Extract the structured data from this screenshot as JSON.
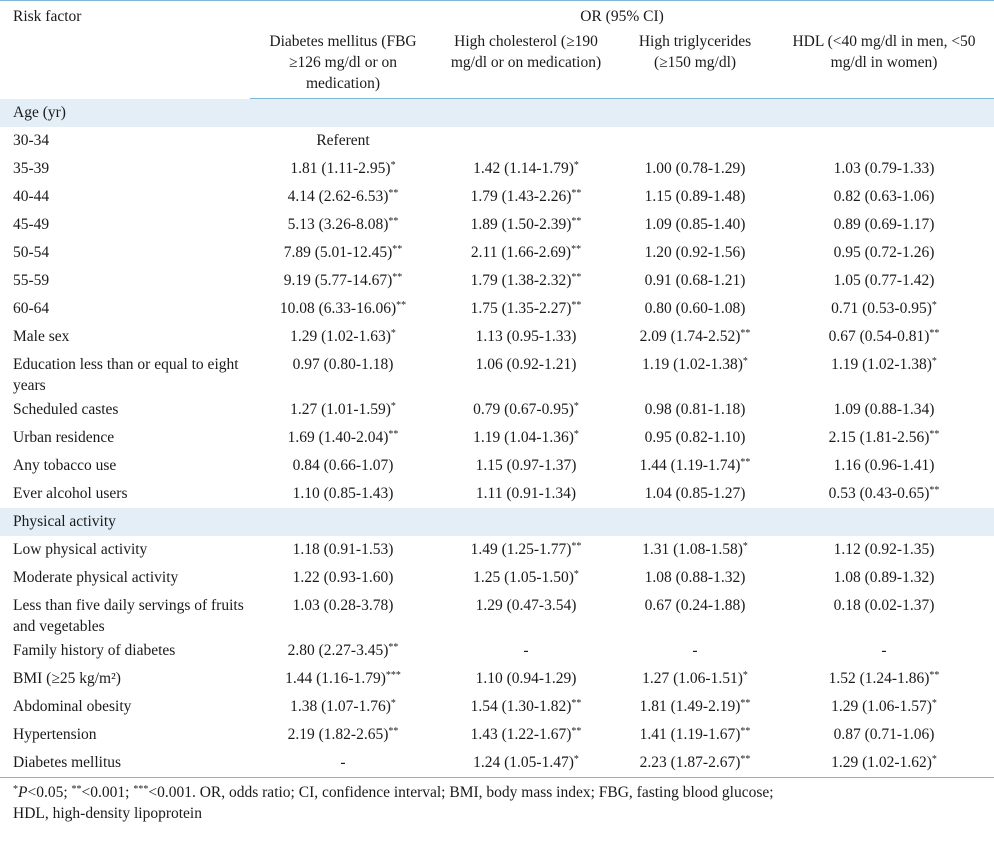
{
  "header": {
    "risk_factor": "Risk factor",
    "or_label": "OR (95% CI)",
    "columns": [
      "Diabetes mellitus (FBG ≥126 mg/dl or on medication)",
      "High cholesterol (≥190 mg/dl or on medication)",
      "High triglycerides (≥150 mg/dl)",
      "HDL (<40 mg/dl in men, <50 mg/dl in women)"
    ]
  },
  "sections": [
    {
      "title": "Age (yr)",
      "rows": [
        {
          "label": "30-34",
          "values": [
            "Referent",
            "",
            "",
            ""
          ],
          "sig": [
            "",
            "",
            "",
            ""
          ]
        },
        {
          "label": "35-39",
          "values": [
            "1.81 (1.11-2.95)",
            "1.42 (1.14-1.79)",
            "1.00 (0.78-1.29)",
            "1.03 (0.79-1.33)"
          ],
          "sig": [
            "*",
            "*",
            "",
            ""
          ]
        },
        {
          "label": "40-44",
          "values": [
            "4.14 (2.62-6.53)",
            "1.79 (1.43-2.26)",
            "1.15 (0.89-1.48)",
            "0.82 (0.63-1.06)"
          ],
          "sig": [
            "**",
            "**",
            "",
            ""
          ]
        },
        {
          "label": "45-49",
          "values": [
            "5.13 (3.26-8.08)",
            "1.89 (1.50-2.39)",
            "1.09 (0.85-1.40)",
            "0.89 (0.69-1.17)"
          ],
          "sig": [
            "**",
            "**",
            "",
            ""
          ]
        },
        {
          "label": "50-54",
          "values": [
            "7.89 (5.01-12.45)",
            "2.11 (1.66-2.69)",
            "1.20 (0.92-1.56)",
            "0.95 (0.72-1.26)"
          ],
          "sig": [
            "**",
            "**",
            "",
            ""
          ]
        },
        {
          "label": "55-59",
          "values": [
            "9.19 (5.77-14.67)",
            "1.79 (1.38-2.32)",
            "0.91 (0.68-1.21)",
            "1.05 (0.77-1.42)"
          ],
          "sig": [
            "**",
            "**",
            "",
            ""
          ]
        },
        {
          "label": "60-64",
          "values": [
            "10.08 (6.33-16.06)",
            "1.75 (1.35-2.27)",
            "0.80 (0.60-1.08)",
            "0.71 (0.53-0.95)"
          ],
          "sig": [
            "**",
            "**",
            "",
            "*"
          ]
        },
        {
          "label": "Male sex",
          "values": [
            "1.29 (1.02-1.63)",
            "1.13 (0.95-1.33)",
            "2.09 (1.74-2.52)",
            "0.67 (0.54-0.81)"
          ],
          "sig": [
            "*",
            "",
            "**",
            "**"
          ]
        },
        {
          "label": "Education less than or equal to eight years",
          "values": [
            "0.97 (0.80-1.18)",
            "1.06 (0.92-1.21)",
            "1.19 (1.02-1.38)",
            "1.19 (1.02-1.38)"
          ],
          "sig": [
            "",
            "",
            "*",
            "*"
          ],
          "tall": true
        },
        {
          "label": "Scheduled castes",
          "values": [
            "1.27 (1.01-1.59)",
            "0.79 (0.67-0.95)",
            "0.98 (0.81-1.18)",
            "1.09 (0.88-1.34)"
          ],
          "sig": [
            "*",
            "*",
            "",
            ""
          ]
        },
        {
          "label": "Urban residence",
          "values": [
            "1.69 (1.40-2.04)",
            "1.19 (1.04-1.36)",
            "0.95 (0.82-1.10)",
            "2.15 (1.81-2.56)"
          ],
          "sig": [
            "**",
            "*",
            "",
            "**"
          ]
        },
        {
          "label": "Any tobacco use",
          "values": [
            "0.84 (0.66-1.07)",
            "1.15 (0.97-1.37)",
            "1.44 (1.19-1.74)",
            "1.16 (0.96-1.41)"
          ],
          "sig": [
            "",
            "",
            "**",
            ""
          ]
        },
        {
          "label": "Ever alcohol users",
          "values": [
            "1.10 (0.85-1.43)",
            "1.11 (0.91-1.34)",
            "1.04 (0.85-1.27)",
            "0.53 (0.43-0.65)"
          ],
          "sig": [
            "",
            "",
            "",
            "**"
          ]
        }
      ]
    },
    {
      "title": "Physical activity",
      "rows": [
        {
          "label": "Low physical activity",
          "values": [
            "1.18 (0.91-1.53)",
            "1.49 (1.25-1.77)",
            "1.31 (1.08-1.58)",
            "1.12 (0.92-1.35)"
          ],
          "sig": [
            "",
            "**",
            "*",
            ""
          ]
        },
        {
          "label": "Moderate physical activity",
          "values": [
            "1.22 (0.93-1.60)",
            "1.25 (1.05-1.50)",
            "1.08 (0.88-1.32)",
            "1.08 (0.89-1.32)"
          ],
          "sig": [
            "",
            "*",
            "",
            ""
          ]
        },
        {
          "label": "Less than five daily servings of fruits and vegetables",
          "values": [
            "1.03 (0.28-3.78)",
            "1.29 (0.47-3.54)",
            "0.67 (0.24-1.88)",
            "0.18 (0.02-1.37)"
          ],
          "sig": [
            "",
            "",
            "",
            ""
          ],
          "tall": true
        },
        {
          "label": "Family history of diabetes",
          "values": [
            "2.80 (2.27-3.45)",
            "-",
            "-",
            "-"
          ],
          "sig": [
            "**",
            "",
            "",
            ""
          ]
        },
        {
          "label": "BMI (≥25 kg/m²)",
          "values": [
            "1.44 (1.16-1.79)",
            "1.10 (0.94-1.29)",
            "1.27 (1.06-1.51)",
            "1.52 (1.24-1.86)"
          ],
          "sig": [
            "***",
            "",
            "*",
            "**"
          ]
        },
        {
          "label": "Abdominal obesity",
          "values": [
            "1.38 (1.07-1.76)",
            "1.54 (1.30-1.82)",
            "1.81 (1.49-2.19)",
            "1.29 (1.06-1.57)"
          ],
          "sig": [
            "*",
            "**",
            "**",
            "*"
          ]
        },
        {
          "label": "Hypertension",
          "values": [
            "2.19 (1.82-2.65)",
            "1.43 (1.22-1.67)",
            "1.41 (1.19-1.67)",
            "0.87 (0.71-1.06)"
          ],
          "sig": [
            "**",
            "**",
            "**",
            ""
          ]
        },
        {
          "label": "Diabetes mellitus",
          "values": [
            "-",
            "1.24 (1.05-1.47)",
            "2.23 (1.87-2.67)",
            "1.29 (1.02-1.62)"
          ],
          "sig": [
            "",
            "*",
            "**",
            "*"
          ]
        }
      ]
    }
  ],
  "footnote": {
    "p1_mark": "*",
    "p1_var": "P",
    "p1_text": "<0.05; ",
    "p2_mark": "**",
    "p2_text": "<0.001; ",
    "p3_mark": "***",
    "p3_text": "<0.001. OR, odds ratio; CI, confidence interval; BMI, body mass index; FBG, fasting blood glucose;",
    "line2": "HDL, high-density lipoprotein"
  }
}
